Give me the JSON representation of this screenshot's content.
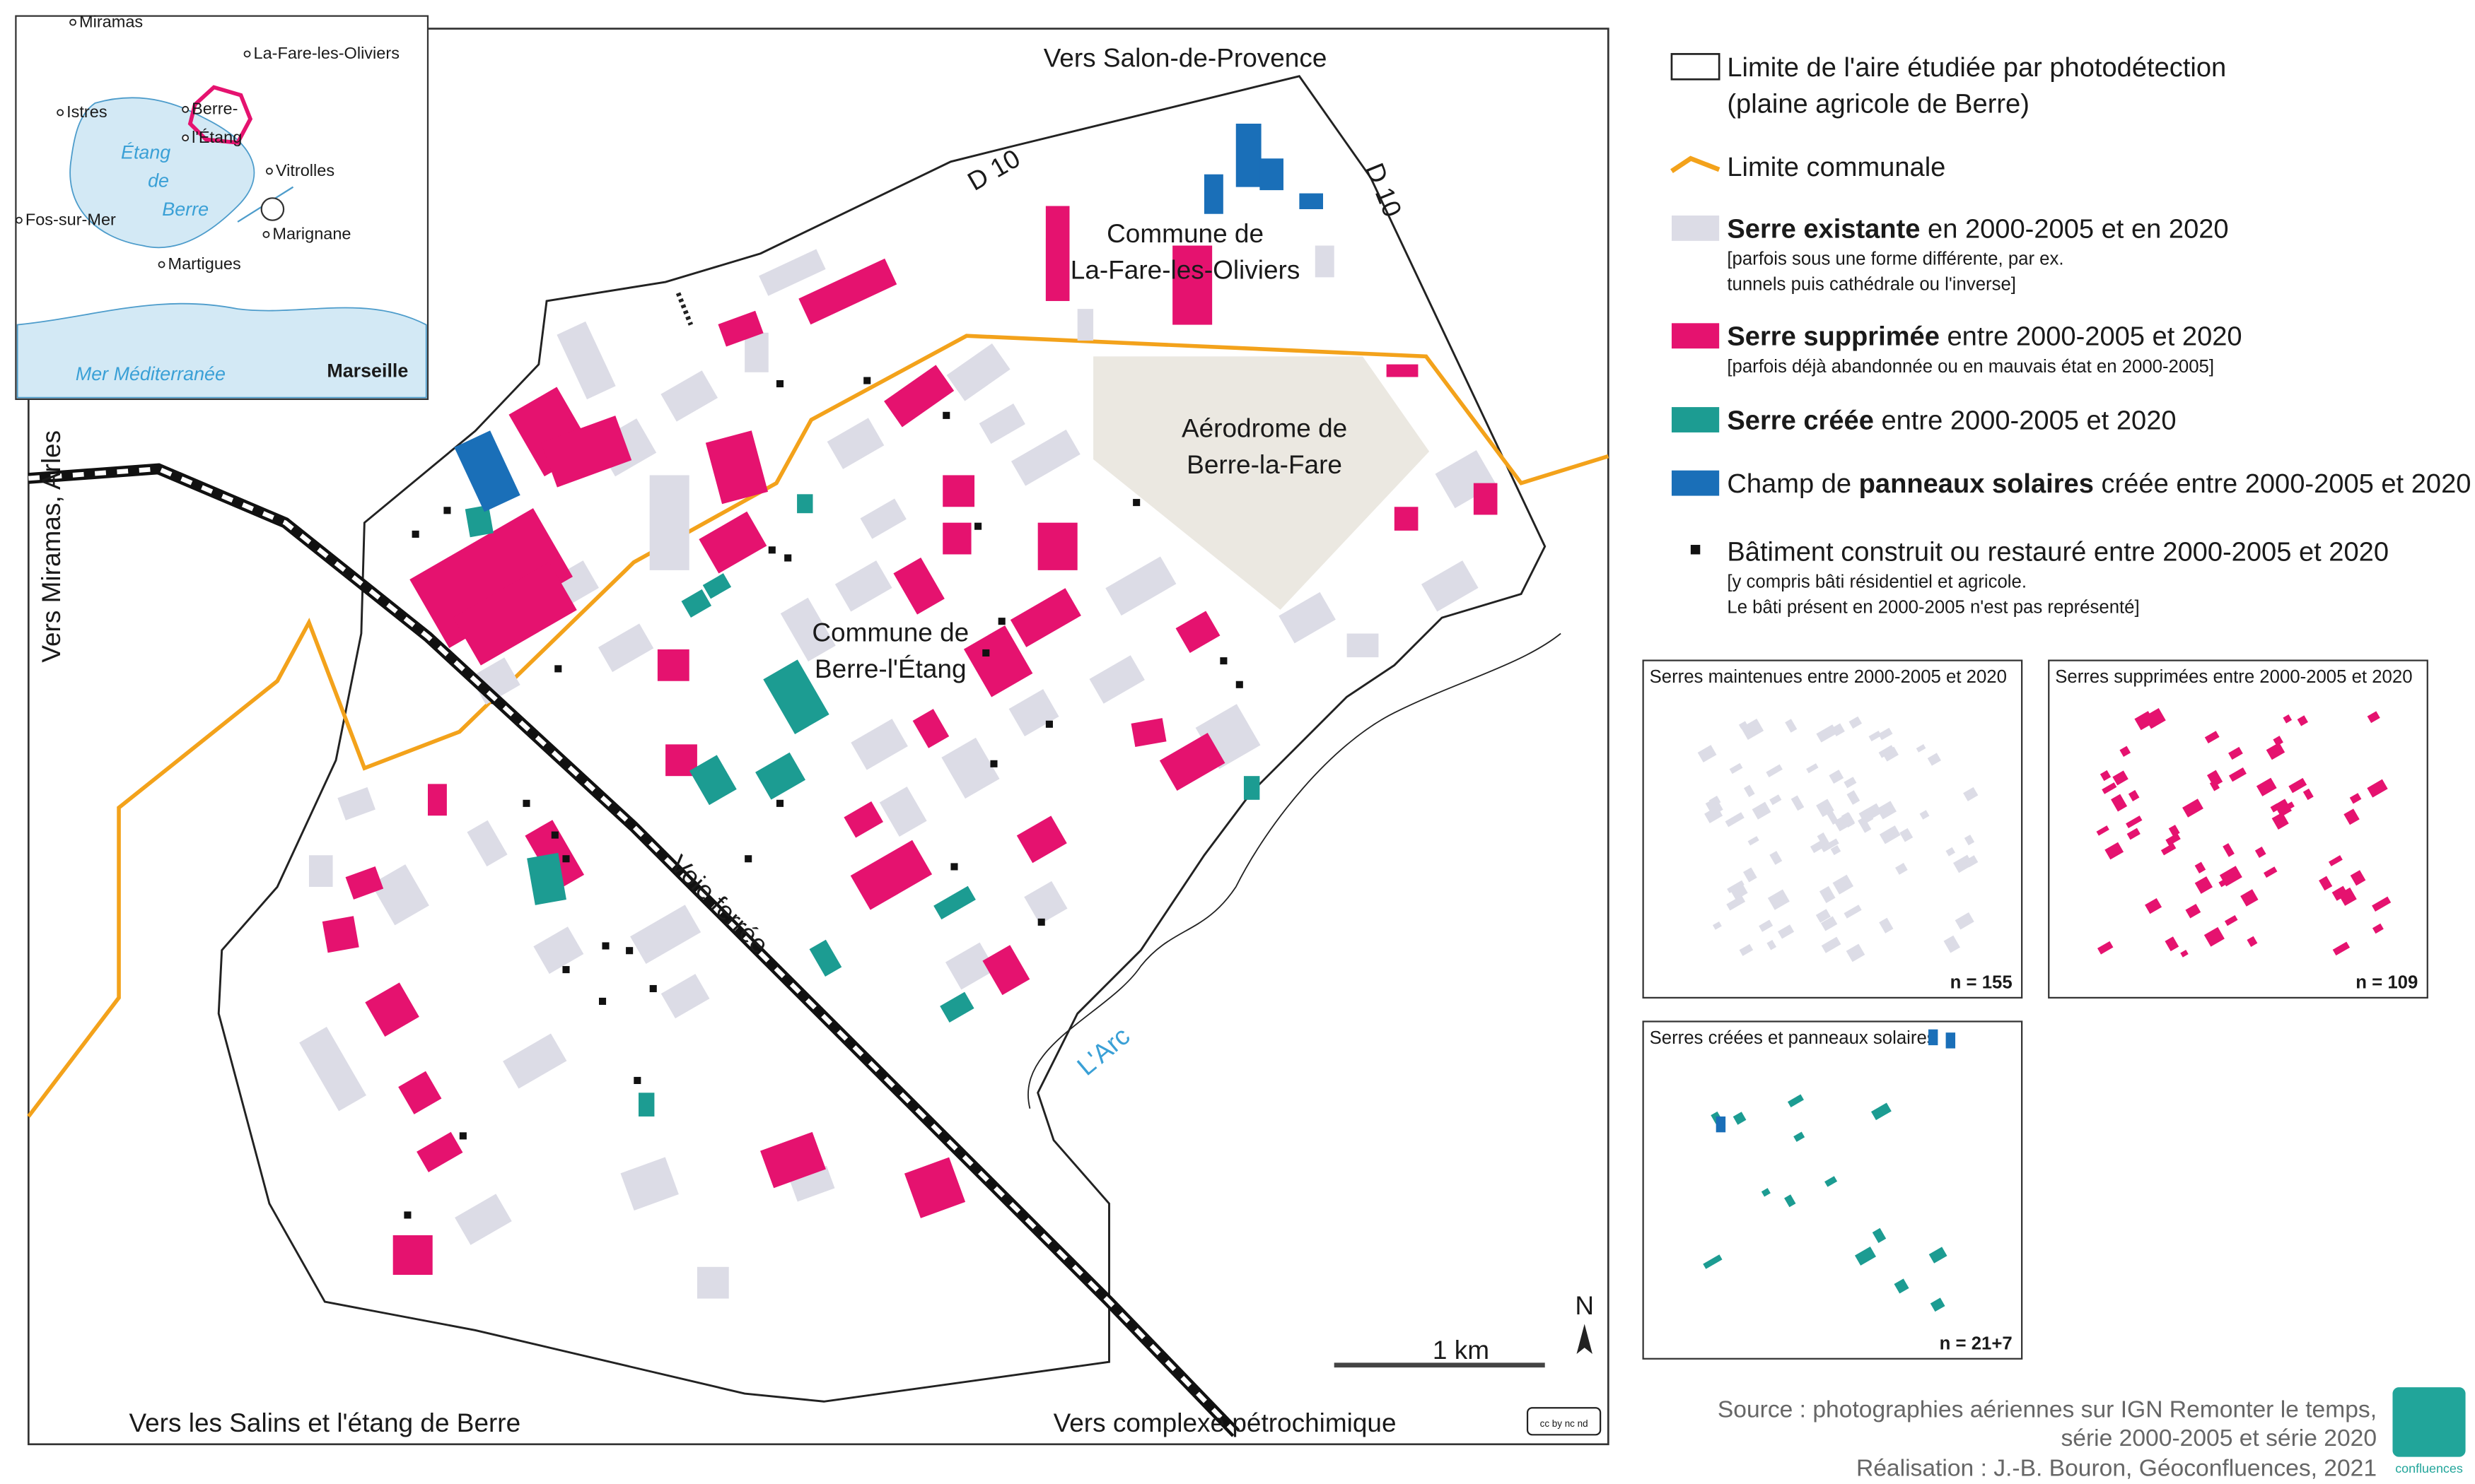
{
  "map": {
    "directions": {
      "north": "Vers Salon-de-Provence",
      "west": "Vers Miramas, Arles",
      "south_west": "Vers les Salins et l'étang de Berre",
      "south": "Vers complexe pétrochimique"
    },
    "roads": [
      "D 10",
      "D 10"
    ],
    "commune_fare": [
      "Commune de",
      "La-Fare-les-Oliviers"
    ],
    "commune_berre": [
      "Commune de",
      "Berre-l'Étang"
    ],
    "aerodrome": [
      "Aérodrome de",
      "Berre-la-Fare"
    ],
    "railway": "Voie ferrée",
    "river": "L'Arc",
    "scale": "1 km",
    "north": "N",
    "license": "cc by nc nd"
  },
  "inset": {
    "places": [
      "Miramas",
      "La-Fare-les-Oliviers",
      "Istres",
      "Berre-",
      "l'Étang",
      "Vitrolles",
      "Fos-sur-Mer",
      "Marignane",
      "Martigues"
    ],
    "lagoon": [
      "Étang",
      "de",
      "Berre"
    ],
    "sea": "Mer Méditerranée",
    "city": "Marseille"
  },
  "legend": [
    {
      "lines": [
        "Limite de l'aire étudiée par photodétection",
        "(plaine agricole de Berre)"
      ]
    },
    {
      "text": "Limite communale"
    },
    {
      "bold": "Serre existante",
      "text": " en 2000-2005 et en 2020",
      "note": [
        "[parfois sous une forme différente, par ex.",
        "tunnels puis cathédrale ou l'inverse]"
      ]
    },
    {
      "bold": "Serre supprimée",
      "text": " entre 2000-2005 et 2020",
      "note": [
        "[parfois déjà abandonnée ou en mauvais état en 2000-2005]"
      ]
    },
    {
      "bold": "Serre créée",
      "text": " entre 2000-2005 et 2020"
    },
    {
      "pre": "Champ de ",
      "bold": "panneaux solaires",
      "text": " créée entre 2000-2005 et 2020"
    },
    {
      "text": "Bâtiment construit ou restauré entre 2000-2005 et 2020",
      "note": [
        "[y compris bâti résidentiel et agricole.",
        "Le bâti présent en 2000-2005 n'est pas représenté]"
      ]
    }
  ],
  "small_maps": [
    {
      "title": "Serres maintenues entre 2000-2005 et 2020",
      "count": "n = 155"
    },
    {
      "title": "Serres supprimées entre 2000-2005 et 2020",
      "count": "n = 109"
    },
    {
      "title": "Serres créées et panneaux solaires",
      "count": "n = 21+7"
    }
  ],
  "source": [
    "Source : photographies aériennes sur IGN Remonter le temps,",
    "série 2000-2005 et série 2020",
    "Réalisation : J.-B. Bouron, Géoconfluences, 2021"
  ],
  "logo": "confluences"
}
